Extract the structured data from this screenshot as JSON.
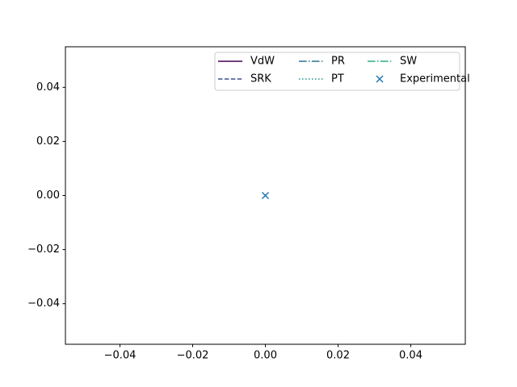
{
  "chart_data": {
    "type": "line",
    "xlim": [
      -0.055,
      0.055
    ],
    "ylim": [
      -0.055,
      0.055
    ],
    "xticks": [
      {
        "value": -0.04,
        "label": "−0.04"
      },
      {
        "value": -0.02,
        "label": "−0.02"
      },
      {
        "value": 0,
        "label": "0.00"
      },
      0.02,
      0.04
    ],
    "yticks": [
      {
        "value": -0.04,
        "label": "−0.04"
      },
      {
        "value": -0.02,
        "label": "−0.02"
      },
      {
        "value": 0,
        "label": "0.00"
      },
      0.02,
      0.04
    ],
    "legend": "upper-right",
    "legend_columns": 3,
    "series": [
      {
        "name": "VdW",
        "type": "line",
        "color": "#440154",
        "linestyle": "solid",
        "x": [],
        "values": []
      },
      {
        "name": "SRK",
        "type": "line",
        "color": "#3b528b",
        "linestyle": "dashed",
        "x": [],
        "values": []
      },
      {
        "name": "PR",
        "type": "line",
        "color": "#2c728e",
        "linestyle": "dashdot",
        "x": [],
        "values": []
      },
      {
        "name": "PT",
        "type": "line",
        "color": "#21918c",
        "linestyle": "dotted",
        "x": [],
        "values": []
      },
      {
        "name": "SW",
        "type": "line",
        "color": "#28ae80",
        "linestyle": "dashdot",
        "x": [],
        "values": []
      },
      {
        "name": "Experimental",
        "type": "scatter",
        "color": "#1f77b4",
        "marker": "x",
        "x": [
          0
        ],
        "values": [
          0
        ]
      }
    ]
  }
}
